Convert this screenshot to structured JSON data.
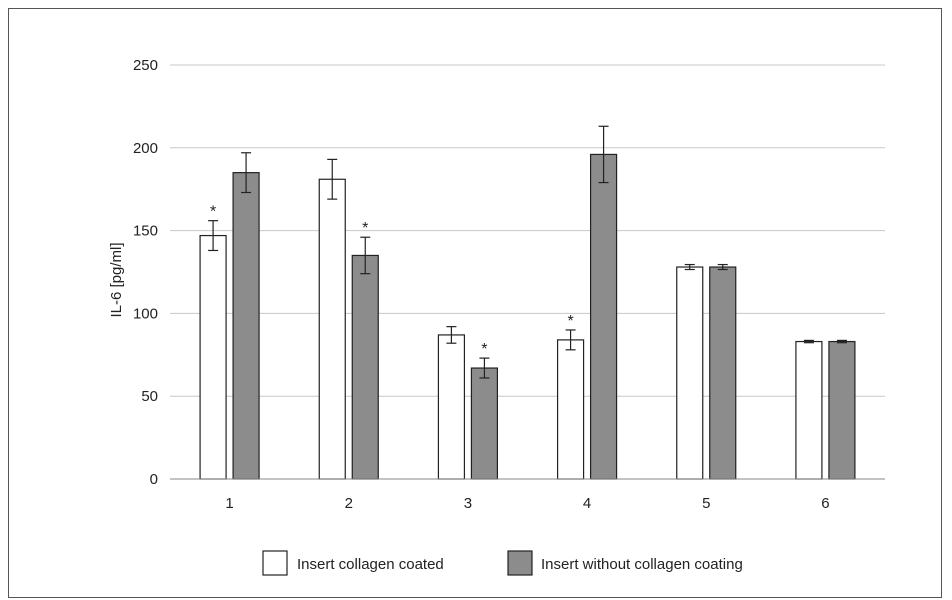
{
  "chart_data": {
    "type": "bar",
    "title": "",
    "xlabel": "",
    "ylabel": "IL-6 [pg/ml]",
    "ylim": [
      0,
      250
    ],
    "yticks": [
      0,
      50,
      100,
      150,
      200,
      250
    ],
    "grid": true,
    "legend_position": "bottom-center",
    "categories": [
      "1",
      "2",
      "3",
      "4",
      "5",
      "6"
    ],
    "series": [
      {
        "name": "Insert collagen coated",
        "color": "#ffffff",
        "values": [
          147,
          181,
          87,
          84,
          128,
          83
        ],
        "errors": [
          9,
          12,
          5,
          6,
          1.5,
          0.7
        ],
        "significance": [
          "*",
          "",
          "",
          "*",
          "",
          ""
        ]
      },
      {
        "name": "Insert without collagen coating",
        "color": "#8c8c8c",
        "values": [
          185,
          135,
          67,
          196,
          128,
          83
        ],
        "errors": [
          12,
          11,
          6,
          17,
          1.5,
          0.7
        ],
        "significance": [
          "",
          "*",
          "*",
          "",
          "",
          ""
        ]
      }
    ]
  }
}
